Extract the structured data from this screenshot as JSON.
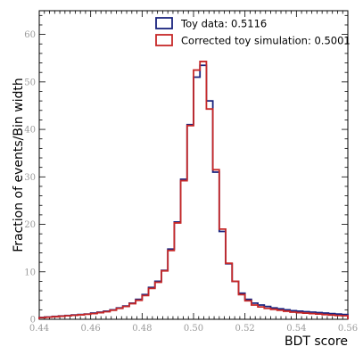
{
  "chart_data": {
    "type": "line",
    "xlabel": "BDT score",
    "ylabel": "Fraction of events/Bin width",
    "xlim": [
      0.44,
      0.56
    ],
    "ylim": [
      0,
      65
    ],
    "x_ticks": [
      "0.44",
      "0.46",
      "0.48",
      "0.50",
      "0.52",
      "0.54",
      "0.56"
    ],
    "y_ticks": [
      "0",
      "10",
      "20",
      "30",
      "40",
      "50",
      "60"
    ],
    "legend_position": "top-center",
    "grid": false,
    "bin_edges": [
      0.44,
      0.4425,
      0.445,
      0.4475,
      0.45,
      0.4525,
      0.455,
      0.4575,
      0.46,
      0.4625,
      0.465,
      0.4675,
      0.47,
      0.4725,
      0.475,
      0.4775,
      0.48,
      0.4825,
      0.485,
      0.4875,
      0.49,
      0.4925,
      0.495,
      0.4975,
      0.5,
      0.5025,
      0.505,
      0.5075,
      0.51,
      0.5125,
      0.515,
      0.5175,
      0.52,
      0.5225,
      0.525,
      0.5275,
      0.53,
      0.5325,
      0.535,
      0.5375,
      0.54,
      0.5425,
      0.545,
      0.5475,
      0.55,
      0.5525,
      0.555,
      0.5575,
      0.56
    ],
    "series": [
      {
        "name": "Toy data: 0.5116",
        "color": "#1a237e",
        "values": [
          0.4,
          0.5,
          0.6,
          0.7,
          0.8,
          0.9,
          1.0,
          1.1,
          1.3,
          1.5,
          1.7,
          2.0,
          2.4,
          2.8,
          3.4,
          4.2,
          5.2,
          6.7,
          8.0,
          10.3,
          14.8,
          20.5,
          29.5,
          41.0,
          51.0,
          53.5,
          46.0,
          31.0,
          18.5,
          11.7,
          8.0,
          5.5,
          4.2,
          3.4,
          3.0,
          2.7,
          2.4,
          2.2,
          2.0,
          1.8,
          1.7,
          1.6,
          1.5,
          1.4,
          1.3,
          1.2,
          1.1,
          1.0
        ]
      },
      {
        "name": "Corrected toy simulation: 0.5001",
        "color": "#c62828",
        "values": [
          0.35,
          0.45,
          0.55,
          0.65,
          0.75,
          0.85,
          0.95,
          1.05,
          1.2,
          1.4,
          1.6,
          1.9,
          2.3,
          2.7,
          3.3,
          4.0,
          5.0,
          6.5,
          7.8,
          10.2,
          14.5,
          20.3,
          29.2,
          40.8,
          52.5,
          54.3,
          44.3,
          31.5,
          19.0,
          11.8,
          8.0,
          5.2,
          3.9,
          3.0,
          2.6,
          2.3,
          2.1,
          1.9,
          1.7,
          1.5,
          1.4,
          1.3,
          1.2,
          1.1,
          1.0,
          0.9,
          0.8,
          0.75
        ]
      }
    ]
  }
}
